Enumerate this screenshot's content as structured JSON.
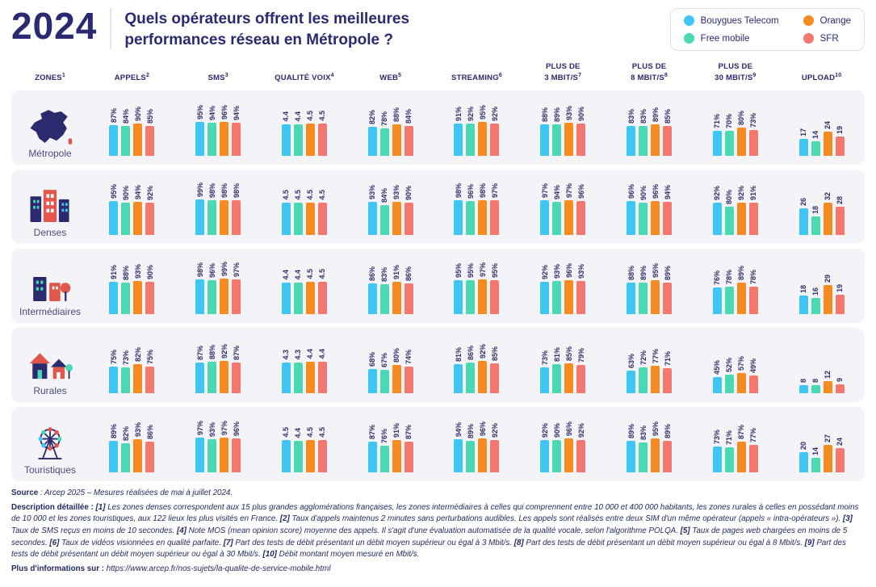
{
  "header": {
    "year": "2024",
    "title": "Quels opérateurs offrent les meilleures performances réseau en Métropole ?",
    "legend": [
      {
        "label": "Bouygues Telecom",
        "color": "#3EC7F4"
      },
      {
        "label": "Free mobile",
        "color": "#4BD9B4"
      },
      {
        "label": "Orange",
        "color": "#F68B1F"
      },
      {
        "label": "SFR",
        "color": "#F4786D"
      }
    ]
  },
  "columns": [
    {
      "label": "ZONES",
      "sup": "1"
    },
    {
      "label": "APPELS",
      "sup": "2"
    },
    {
      "label": "SMS",
      "sup": "3"
    },
    {
      "label": "QUALITÉ VOIX",
      "sup": "4"
    },
    {
      "label": "WEB",
      "sup": "5"
    },
    {
      "label": "STREAMING",
      "sup": "6"
    },
    {
      "label": "PLUS DE\n3 MBIT/S",
      "sup": "7"
    },
    {
      "label": "PLUS DE\n8 MBIT/S",
      "sup": "8"
    },
    {
      "label": "PLUS DE\n30 MBIT/S",
      "sup": "9"
    },
    {
      "label": "UPLOAD",
      "sup": "10"
    }
  ],
  "chart_data": {
    "type": "bar",
    "title": "Quels opérateurs offrent les meilleures performances réseau en Métropole ?",
    "legend_position": "top-right",
    "series": [
      {
        "name": "Bouygues Telecom",
        "color": "#3EC7F4"
      },
      {
        "name": "Free mobile",
        "color": "#4BD9B4"
      },
      {
        "name": "Orange",
        "color": "#F68B1F"
      },
      {
        "name": "SFR",
        "color": "#F4786D"
      }
    ],
    "metrics": [
      {
        "name": "APPELS",
        "unit": "%",
        "max": 100
      },
      {
        "name": "SMS",
        "unit": "%",
        "max": 100
      },
      {
        "name": "QUALITÉ VOIX",
        "unit": "MOS",
        "max": 5
      },
      {
        "name": "WEB",
        "unit": "%",
        "max": 100
      },
      {
        "name": "STREAMING",
        "unit": "%",
        "max": 100
      },
      {
        "name": "PLUS DE 3 MBIT/S",
        "unit": "%",
        "max": 100
      },
      {
        "name": "PLUS DE 8 MBIT/S",
        "unit": "%",
        "max": 100
      },
      {
        "name": "PLUS DE 30 MBIT/S",
        "unit": "%",
        "max": 100
      },
      {
        "name": "UPLOAD",
        "unit": "Mbit/s",
        "max": 35
      }
    ],
    "zones": [
      {
        "name": "Métropole",
        "icon": "france-map",
        "values": [
          [
            87,
            84,
            90,
            85
          ],
          [
            95,
            94,
            96,
            94
          ],
          [
            4.4,
            4.4,
            4.5,
            4.5
          ],
          [
            82,
            78,
            88,
            84
          ],
          [
            91,
            92,
            95,
            92
          ],
          [
            88,
            89,
            93,
            90
          ],
          [
            83,
            83,
            89,
            85
          ],
          [
            71,
            70,
            80,
            73
          ],
          [
            17,
            14,
            24,
            19
          ]
        ]
      },
      {
        "name": "Denses",
        "icon": "dense-city",
        "values": [
          [
            95,
            90,
            94,
            92
          ],
          [
            99,
            98,
            98,
            98
          ],
          [
            4.5,
            4.5,
            4.5,
            4.5
          ],
          [
            93,
            84,
            93,
            90
          ],
          [
            98,
            96,
            98,
            97
          ],
          [
            97,
            94,
            97,
            96
          ],
          [
            96,
            90,
            96,
            94
          ],
          [
            92,
            80,
            92,
            91
          ],
          [
            26,
            18,
            32,
            28
          ]
        ]
      },
      {
        "name": "Intermédiaires",
        "icon": "mid-city",
        "values": [
          [
            91,
            88,
            93,
            90
          ],
          [
            98,
            96,
            99,
            97
          ],
          [
            4.4,
            4.4,
            4.5,
            4.5
          ],
          [
            86,
            83,
            91,
            86
          ],
          [
            95,
            95,
            97,
            95
          ],
          [
            92,
            93,
            96,
            93
          ],
          [
            88,
            89,
            95,
            89
          ],
          [
            76,
            78,
            89,
            78
          ],
          [
            18,
            16,
            29,
            19
          ]
        ]
      },
      {
        "name": "Rurales",
        "icon": "houses",
        "values": [
          [
            75,
            73,
            82,
            75
          ],
          [
            87,
            88,
            92,
            87
          ],
          [
            4.3,
            4.3,
            4.4,
            4.4
          ],
          [
            68,
            67,
            80,
            74
          ],
          [
            81,
            86,
            92,
            85
          ],
          [
            73,
            81,
            85,
            79
          ],
          [
            63,
            72,
            77,
            71
          ],
          [
            45,
            52,
            57,
            49
          ],
          [
            8,
            8,
            12,
            9
          ]
        ]
      },
      {
        "name": "Touristiques",
        "icon": "ferris-wheel",
        "values": [
          [
            89,
            82,
            93,
            86
          ],
          [
            97,
            93,
            97,
            96
          ],
          [
            4.5,
            4.4,
            4.5,
            4.5
          ],
          [
            87,
            76,
            91,
            87
          ],
          [
            94,
            89,
            96,
            92
          ],
          [
            92,
            90,
            96,
            92
          ],
          [
            89,
            83,
            95,
            89
          ],
          [
            73,
            71,
            87,
            77
          ],
          [
            20,
            14,
            27,
            24
          ]
        ]
      }
    ]
  },
  "footer": {
    "source_label": "Source",
    "source_text": " : Arcep 2025 – Mesures réalisées de mai à juillet 2024.",
    "description_label": "Description détaillée : ",
    "description": "[1] Les zones denses correspondent aux 15 plus grandes agglomérations françaises, les zones intermédiaires à celles qui comprennent entre 10 000 et 400 000 habitants, les zones rurales à celles en possédant moins de 10 000 et les zones touristiques, aux 122 lieux les plus visités en France. [2] Taux d'appels maintenus 2 minutes sans perturbations audibles. Les appels sont réalisés entre deux SIM d'un même opérateur (appels « intra-opérateurs »). [3] Taux de SMS reçus en moins de 10 secondes. [4] Note MOS (mean opinion score) moyenne des appels. Il s'agit d'une évaluation automatisée de la qualité vocale, selon l'algorithme POLQA. [5] Taux de pages web chargées en moins de 5 secondes. [6] Taux de vidéos visionnées en qualité parfaite. [7] Part des tests de débit présentant un débit moyen supérieur ou égal à 3 Mbit/s. [8] Part des tests de débit présentant un débit moyen supérieur ou égal à 8 Mbit/s. [9] Part des tests de débit présentant un débit moyen supérieur ou égal à 30 Mbit/s. [10] Débit montant moyen mesuré en Mbit/s.",
    "info_label": "Plus d'informations sur :",
    "info_url": "https://www.arcep.fr/nos-sujets/la-qualite-de-service-mobile.html"
  }
}
